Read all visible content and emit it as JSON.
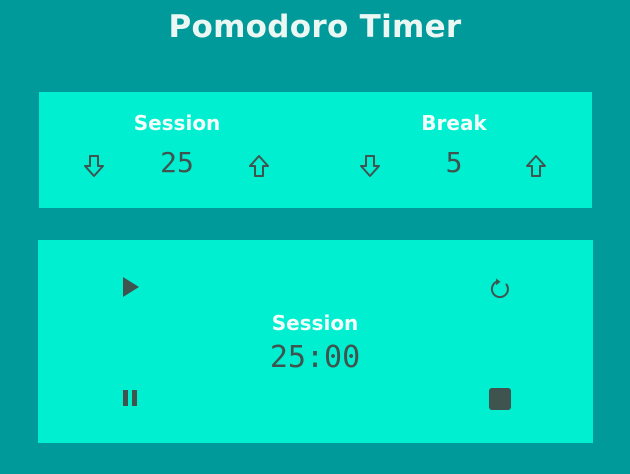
{
  "app": {
    "title": "Pomodoro Timer"
  },
  "settings": {
    "session": {
      "label": "Session",
      "value": "25"
    },
    "break": {
      "label": "Break",
      "value": "5"
    }
  },
  "timer": {
    "label": "Session",
    "time": "25:00"
  },
  "icons": {
    "decrement": "arrow-down-outline-icon",
    "increment": "arrow-up-outline-icon",
    "play": "play-icon",
    "pause": "pause-icon",
    "reset": "refresh-icon",
    "stop": "stop-icon"
  },
  "colors": {
    "background": "#009a9b",
    "panel": "#00efd1",
    "label_text": "#f3fffb",
    "value_text": "#3f544f"
  }
}
